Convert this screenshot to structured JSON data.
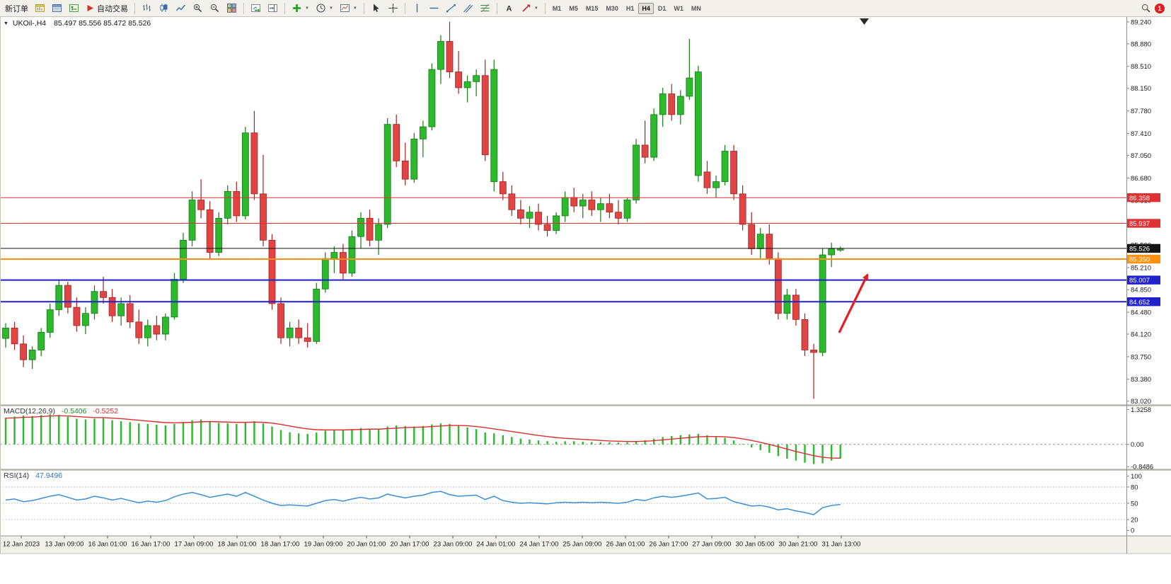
{
  "toolbar": {
    "items": [
      {
        "name": "new-order",
        "kind": "button",
        "label": "新订单"
      },
      {
        "name": "market-watch",
        "kind": "icon",
        "icon": "market-watch-icon"
      },
      {
        "name": "data-window",
        "kind": "icon",
        "icon": "data-window-icon"
      },
      {
        "name": "navigator",
        "kind": "icon",
        "icon": "navigator-icon"
      },
      {
        "name": "autotrade",
        "kind": "button",
        "label": "自动交易",
        "icon": "autotrade-icon"
      },
      {
        "kind": "sep"
      },
      {
        "name": "bars-chart",
        "kind": "icon",
        "icon": "bars-chart-icon"
      },
      {
        "name": "candles-chart",
        "kind": "icon",
        "icon": "candles-chart-icon"
      },
      {
        "name": "line-chart",
        "kind": "icon",
        "icon": "line-chart-icon"
      },
      {
        "name": "zoom-in",
        "kind": "icon",
        "icon": "zoom-in-icon"
      },
      {
        "name": "zoom-out",
        "kind": "icon",
        "icon": "zoom-out-icon"
      },
      {
        "name": "tile-windows",
        "kind": "icon",
        "icon": "tile-windows-icon"
      },
      {
        "kind": "sep"
      },
      {
        "name": "auto-scroll",
        "kind": "icon",
        "icon": "auto-scroll-icon"
      },
      {
        "name": "chart-shift",
        "kind": "icon",
        "icon": "chart-shift-icon"
      },
      {
        "kind": "sep"
      },
      {
        "name": "add-indicator",
        "kind": "icon",
        "icon": "add-indicator-icon",
        "caret": true
      },
      {
        "name": "periods",
        "kind": "icon",
        "icon": "clock-icon",
        "caret": true
      },
      {
        "name": "templates",
        "kind": "icon",
        "icon": "template-icon",
        "caret": true
      },
      {
        "kind": "sep"
      },
      {
        "name": "cursor",
        "kind": "icon",
        "icon": "cursor-icon"
      },
      {
        "name": "crosshair",
        "kind": "icon",
        "icon": "crosshair-icon"
      },
      {
        "kind": "sep"
      },
      {
        "name": "vertical-line",
        "kind": "icon",
        "icon": "vline-icon"
      },
      {
        "name": "horizontal-line",
        "kind": "icon",
        "icon": "hline-icon"
      },
      {
        "name": "trendline",
        "kind": "icon",
        "icon": "trendline-icon"
      },
      {
        "name": "channel",
        "kind": "icon",
        "icon": "channel-icon"
      },
      {
        "name": "fibonacci",
        "kind": "icon",
        "icon": "fibonacci-icon"
      },
      {
        "kind": "sep"
      },
      {
        "name": "text-tool",
        "kind": "icon",
        "icon": "text-icon"
      },
      {
        "name": "arrows-tool",
        "kind": "icon",
        "icon": "arrow-shape-icon",
        "caret": true
      },
      {
        "kind": "sep"
      }
    ],
    "timeframes": [
      "M1",
      "M5",
      "M15",
      "M30",
      "H1",
      "H4",
      "D1",
      "W1",
      "MN"
    ],
    "active_timeframe": "H4",
    "badge": "1"
  },
  "chart": {
    "title": "UKOil-,H4",
    "ohlc_text": "85.497 85.556 85.472 85.526",
    "colors": {
      "up": "#2eb82e",
      "down": "#e04545",
      "up_border": "#157a15",
      "down_border": "#a32222",
      "arrow": "#e02020"
    }
  },
  "panels": {
    "macd_title": "MACD(12,26,9)",
    "macd_main": "-0.5406",
    "macd_signal": "-0.5252",
    "rsi_title": "RSI(14)",
    "rsi_value": "47.9496"
  },
  "chart_data": [
    {
      "type": "candlestick",
      "title": "UKOil-,H4",
      "current_ohlc": {
        "open": "85.497",
        "high": "85.556",
        "low": "85.472",
        "close": "85.526"
      },
      "y_range": [
        83.02,
        89.24
      ],
      "y_axis_ticks": [
        "89.240",
        "88.880",
        "88.510",
        "88.150",
        "87.780",
        "87.410",
        "87.050",
        "86.680",
        "86.310",
        "85.950",
        "85.580",
        "85.210",
        "84.850",
        "84.480",
        "84.120",
        "83.750",
        "83.380",
        "83.020"
      ],
      "x_tick_labels": [
        "12 Jan 2023",
        "13 Jan 09:00",
        "16 Jan 01:00",
        "16 Jan 17:00",
        "17 Jan 09:00",
        "18 Jan 01:00",
        "18 Jan 17:00",
        "19 Jan 09:00",
        "20 Jan 01:00",
        "20 Jan 17:00",
        "23 Jan 09:00",
        "24 Jan 01:00",
        "24 Jan 17:00",
        "25 Jan 09:00",
        "26 Jan 01:00",
        "26 Jan 17:00",
        "27 Jan 09:00",
        "30 Jan 05:00",
        "30 Jan 21:00",
        "31 Jan 13:00"
      ],
      "horizontal_lines": [
        {
          "price": 86.358,
          "label": "86.358",
          "color": "#e03232",
          "width": 1
        },
        {
          "price": 85.937,
          "label": "85.937",
          "color": "#e03232",
          "width": 1
        },
        {
          "price": 85.526,
          "label": "85.526",
          "color": "#141414",
          "width": 1
        },
        {
          "price": 85.35,
          "label": "85.350",
          "color": "#ff9010",
          "width": 2
        },
        {
          "price": 85.007,
          "label": "85.007",
          "color": "#2020cc",
          "width": 2
        },
        {
          "price": 84.652,
          "label": "84.652",
          "color": "#2020cc",
          "width": 2
        }
      ],
      "annotation": {
        "type": "trend-arrow-up",
        "color": "#e02020"
      },
      "ohlc": [
        [
          84.05,
          84.3,
          83.9,
          84.22
        ],
        [
          84.22,
          84.32,
          83.86,
          83.96
        ],
        [
          83.96,
          84.1,
          83.58,
          83.7
        ],
        [
          83.7,
          83.92,
          83.55,
          83.86
        ],
        [
          83.86,
          84.22,
          83.76,
          84.15
        ],
        [
          84.15,
          84.62,
          84.06,
          84.52
        ],
        [
          84.52,
          85.02,
          84.42,
          84.92
        ],
        [
          84.92,
          84.98,
          84.46,
          84.56
        ],
        [
          84.56,
          84.72,
          84.16,
          84.26
        ],
        [
          84.26,
          84.56,
          84.12,
          84.46
        ],
        [
          84.46,
          84.92,
          84.36,
          84.82
        ],
        [
          84.82,
          85.06,
          84.62,
          84.72
        ],
        [
          84.72,
          84.86,
          84.32,
          84.42
        ],
        [
          84.42,
          84.72,
          84.26,
          84.62
        ],
        [
          84.62,
          84.76,
          84.22,
          84.32
        ],
        [
          84.32,
          84.52,
          83.96,
          84.06
        ],
        [
          84.06,
          84.36,
          83.92,
          84.26
        ],
        [
          84.26,
          84.42,
          84.02,
          84.12
        ],
        [
          84.12,
          84.46,
          84.02,
          84.4
        ],
        [
          84.4,
          85.12,
          84.36,
          85.02
        ],
        [
          85.02,
          85.78,
          84.96,
          85.66
        ],
        [
          85.66,
          86.46,
          85.56,
          86.32
        ],
        [
          86.32,
          86.66,
          86.02,
          86.16
        ],
        [
          86.16,
          86.3,
          85.36,
          85.46
        ],
        [
          85.46,
          86.12,
          85.4,
          86.02
        ],
        [
          86.02,
          86.56,
          85.92,
          86.46
        ],
        [
          86.46,
          86.62,
          85.96,
          86.06
        ],
        [
          86.06,
          87.52,
          86.0,
          87.42
        ],
        [
          87.42,
          87.78,
          86.32,
          86.42
        ],
        [
          86.42,
          87.06,
          85.56,
          85.66
        ],
        [
          85.66,
          85.76,
          84.52,
          84.62
        ],
        [
          84.62,
          84.72,
          83.96,
          84.06
        ],
        [
          84.06,
          84.32,
          83.92,
          84.22
        ],
        [
          84.22,
          84.36,
          83.96,
          84.06
        ],
        [
          84.06,
          84.3,
          83.9,
          84.0
        ],
        [
          84.0,
          84.96,
          83.96,
          84.86
        ],
        [
          84.86,
          85.46,
          84.8,
          85.36
        ],
        [
          85.36,
          85.56,
          85.12,
          85.46
        ],
        [
          85.46,
          85.6,
          85.02,
          85.12
        ],
        [
          85.12,
          85.82,
          85.06,
          85.72
        ],
        [
          85.72,
          86.12,
          85.52,
          86.02
        ],
        [
          86.02,
          86.16,
          85.56,
          85.66
        ],
        [
          85.66,
          86.02,
          85.42,
          85.92
        ],
        [
          85.92,
          87.66,
          85.86,
          87.56
        ],
        [
          87.56,
          87.72,
          86.86,
          86.96
        ],
        [
          86.96,
          87.26,
          86.56,
          86.66
        ],
        [
          86.66,
          87.42,
          86.6,
          87.32
        ],
        [
          87.32,
          87.62,
          87.02,
          87.52
        ],
        [
          87.52,
          88.56,
          87.46,
          88.46
        ],
        [
          88.46,
          89.02,
          88.22,
          88.92
        ],
        [
          88.92,
          89.24,
          88.32,
          88.42
        ],
        [
          88.42,
          88.76,
          88.06,
          88.16
        ],
        [
          88.16,
          88.36,
          87.92,
          88.26
        ],
        [
          88.26,
          88.46,
          88.02,
          88.36
        ],
        [
          88.36,
          88.62,
          86.96,
          87.06
        ],
        [
          86.62,
          88.62,
          86.46,
          88.46
        ],
        [
          86.62,
          86.78,
          86.32,
          86.42
        ],
        [
          86.42,
          86.56,
          86.06,
          86.16
        ],
        [
          86.16,
          86.32,
          85.92,
          86.02
        ],
        [
          86.02,
          86.22,
          85.86,
          86.12
        ],
        [
          86.12,
          86.26,
          85.82,
          85.92
        ],
        [
          85.92,
          86.06,
          85.72,
          85.82
        ],
        [
          85.82,
          86.12,
          85.76,
          86.06
        ],
        [
          86.06,
          86.46,
          85.96,
          86.36
        ],
        [
          86.36,
          86.52,
          86.12,
          86.22
        ],
        [
          86.22,
          86.42,
          86.02,
          86.32
        ],
        [
          86.32,
          86.46,
          86.06,
          86.16
        ],
        [
          86.16,
          86.36,
          85.96,
          86.26
        ],
        [
          86.26,
          86.42,
          86.02,
          86.12
        ],
        [
          86.12,
          86.32,
          85.92,
          86.02
        ],
        [
          86.02,
          86.36,
          85.96,
          86.32
        ],
        [
          86.32,
          87.32,
          86.26,
          87.22
        ],
        [
          87.22,
          87.62,
          86.92,
          87.02
        ],
        [
          87.02,
          87.82,
          86.96,
          87.72
        ],
        [
          87.72,
          88.16,
          87.52,
          88.06
        ],
        [
          88.06,
          88.22,
          87.62,
          87.72
        ],
        [
          87.72,
          88.12,
          87.56,
          88.02
        ],
        [
          88.02,
          88.96,
          87.96,
          88.32
        ],
        [
          86.72,
          88.52,
          86.62,
          88.42
        ],
        [
          86.78,
          86.96,
          86.42,
          86.52
        ],
        [
          86.52,
          86.72,
          86.36,
          86.62
        ],
        [
          86.62,
          87.22,
          86.56,
          87.12
        ],
        [
          87.12,
          87.22,
          86.32,
          86.42
        ],
        [
          86.42,
          86.56,
          85.82,
          85.92
        ],
        [
          85.92,
          86.12,
          85.42,
          85.52
        ],
        [
          85.52,
          85.86,
          85.36,
          85.76
        ],
        [
          85.76,
          85.92,
          85.26,
          85.36
        ],
        [
          85.36,
          85.46,
          84.36,
          84.46
        ],
        [
          84.46,
          84.86,
          84.36,
          84.76
        ],
        [
          84.76,
          84.86,
          84.26,
          84.36
        ],
        [
          84.36,
          84.46,
          83.76,
          83.86
        ],
        [
          83.86,
          83.96,
          83.06,
          83.82
        ],
        [
          83.82,
          85.52,
          83.76,
          85.42
        ],
        [
          85.42,
          85.62,
          85.22,
          85.52
        ],
        [
          85.497,
          85.556,
          85.472,
          85.526
        ]
      ]
    },
    {
      "type": "macd",
      "name": "MACD(12,26,9)",
      "main_value": -0.5406,
      "signal_value": -0.5252,
      "y_range": [
        -0.8486,
        1.3258
      ],
      "scale_labels": [
        "1.3258",
        "0.00",
        "-0.8486"
      ],
      "histogram_color": "#2eb82e",
      "signal_color": "#dd2e2e",
      "histogram": [
        1.02,
        1.06,
        1.1,
        1.08,
        1.12,
        1.15,
        1.12,
        1.05,
        0.98,
        0.95,
        0.98,
        1.0,
        0.92,
        0.88,
        0.85,
        0.8,
        0.78,
        0.75,
        0.72,
        0.78,
        0.85,
        0.92,
        0.95,
        0.88,
        0.82,
        0.8,
        0.78,
        0.82,
        0.88,
        0.8,
        0.68,
        0.55,
        0.46,
        0.42,
        0.4,
        0.45,
        0.52,
        0.56,
        0.55,
        0.58,
        0.62,
        0.6,
        0.58,
        0.68,
        0.72,
        0.7,
        0.68,
        0.7,
        0.76,
        0.8,
        0.78,
        0.72,
        0.65,
        0.58,
        0.45,
        0.42,
        0.35,
        0.28,
        0.22,
        0.18,
        0.15,
        0.12,
        0.1,
        0.12,
        0.12,
        0.1,
        0.09,
        0.08,
        0.08,
        0.07,
        0.08,
        0.12,
        0.16,
        0.22,
        0.28,
        0.32,
        0.35,
        0.38,
        0.4,
        0.35,
        0.28,
        0.25,
        0.15,
        0.02,
        -0.12,
        -0.22,
        -0.32,
        -0.45,
        -0.55,
        -0.62,
        -0.7,
        -0.75,
        -0.72,
        -0.62,
        -0.5406
      ],
      "signal": [
        1.0,
        1.01,
        1.03,
        1.04,
        1.06,
        1.08,
        1.09,
        1.08,
        1.06,
        1.04,
        1.02,
        1.02,
        1.0,
        0.98,
        0.95,
        0.92,
        0.89,
        0.86,
        0.83,
        0.82,
        0.83,
        0.84,
        0.86,
        0.87,
        0.86,
        0.85,
        0.84,
        0.84,
        0.85,
        0.84,
        0.81,
        0.76,
        0.7,
        0.64,
        0.59,
        0.56,
        0.55,
        0.55,
        0.55,
        0.56,
        0.57,
        0.58,
        0.58,
        0.6,
        0.62,
        0.64,
        0.65,
        0.66,
        0.68,
        0.7,
        0.72,
        0.72,
        0.71,
        0.68,
        0.64,
        0.59,
        0.54,
        0.49,
        0.44,
        0.39,
        0.34,
        0.3,
        0.26,
        0.23,
        0.21,
        0.19,
        0.17,
        0.15,
        0.13,
        0.12,
        0.11,
        0.11,
        0.12,
        0.14,
        0.17,
        0.2,
        0.23,
        0.26,
        0.29,
        0.3,
        0.3,
        0.29,
        0.26,
        0.21,
        0.15,
        0.08,
        0.0,
        -0.09,
        -0.18,
        -0.27,
        -0.35,
        -0.43,
        -0.49,
        -0.52,
        -0.5252
      ]
    },
    {
      "type": "line",
      "name": "RSI(14)",
      "current_value": 47.9496,
      "y_range": [
        0,
        100
      ],
      "levels": [
        80,
        50,
        20
      ],
      "scale_labels": [
        "100",
        "80",
        "50",
        "20",
        "0"
      ],
      "line_color": "#3c8fd4",
      "values": [
        56,
        58,
        53,
        55,
        59,
        63,
        66,
        61,
        56,
        58,
        63,
        60,
        56,
        59,
        55,
        51,
        54,
        52,
        55,
        62,
        67,
        70,
        66,
        61,
        64,
        67,
        63,
        70,
        63,
        56,
        50,
        46,
        47,
        46,
        45,
        50,
        55,
        57,
        54,
        58,
        61,
        58,
        60,
        67,
        63,
        60,
        63,
        65,
        70,
        72,
        66,
        63,
        64,
        65,
        57,
        63,
        55,
        52,
        50,
        51,
        50,
        49,
        51,
        52,
        51,
        52,
        51,
        52,
        51,
        50,
        52,
        57,
        55,
        60,
        63,
        61,
        63,
        66,
        69,
        58,
        59,
        61,
        53,
        49,
        45,
        46,
        43,
        38,
        40,
        36,
        33,
        29,
        42,
        46,
        47.9
      ]
    }
  ]
}
